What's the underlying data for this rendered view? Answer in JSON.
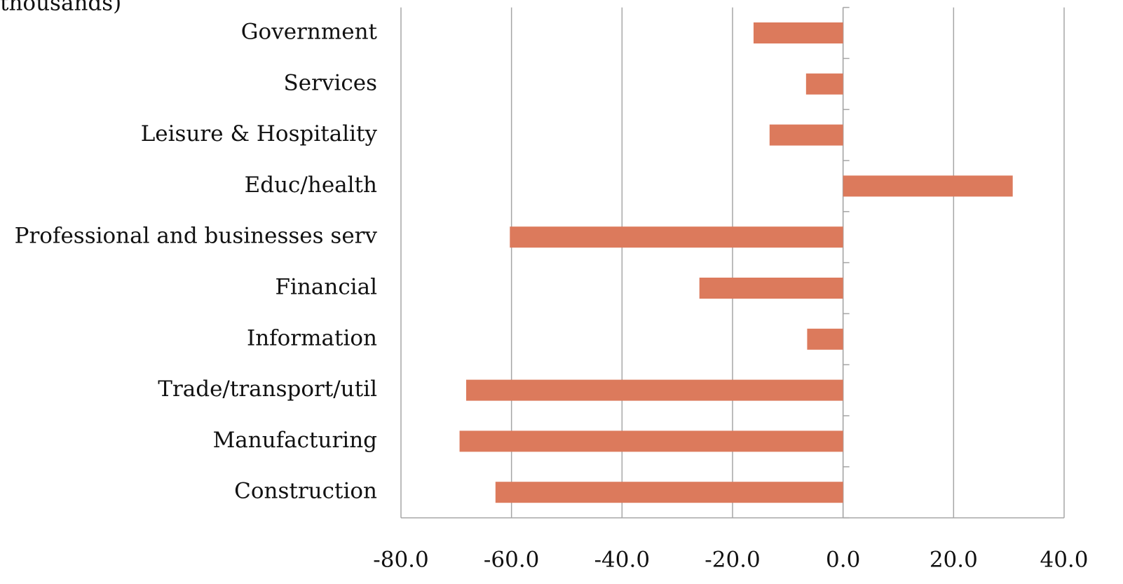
{
  "chart_data": {
    "type": "barh",
    "title": "thousands)",
    "categories": [
      "Government",
      "Services",
      "Leisure & Hospitality",
      "Educ/health",
      "Professional and businesses serv",
      "Financial",
      "Information",
      "Trade/transport/util",
      "Manufacturing",
      "Construction"
    ],
    "values": [
      -16.2,
      -6.7,
      -13.3,
      30.7,
      -60.3,
      -26.0,
      -6.5,
      -68.2,
      -69.4,
      -62.9
    ],
    "color": "#dc7a5c",
    "xlim": [
      -80,
      40
    ],
    "xticks": [
      {
        "value": -80,
        "label": "-80.0"
      },
      {
        "value": -60,
        "label": "-60.0"
      },
      {
        "value": -40,
        "label": "-40.0"
      },
      {
        "value": -20,
        "label": "-20.0"
      },
      {
        "value": 0,
        "label": "0.0"
      },
      {
        "value": 20,
        "label": "20.0"
      },
      {
        "value": 40,
        "label": "40.0"
      }
    ],
    "grid": true
  }
}
